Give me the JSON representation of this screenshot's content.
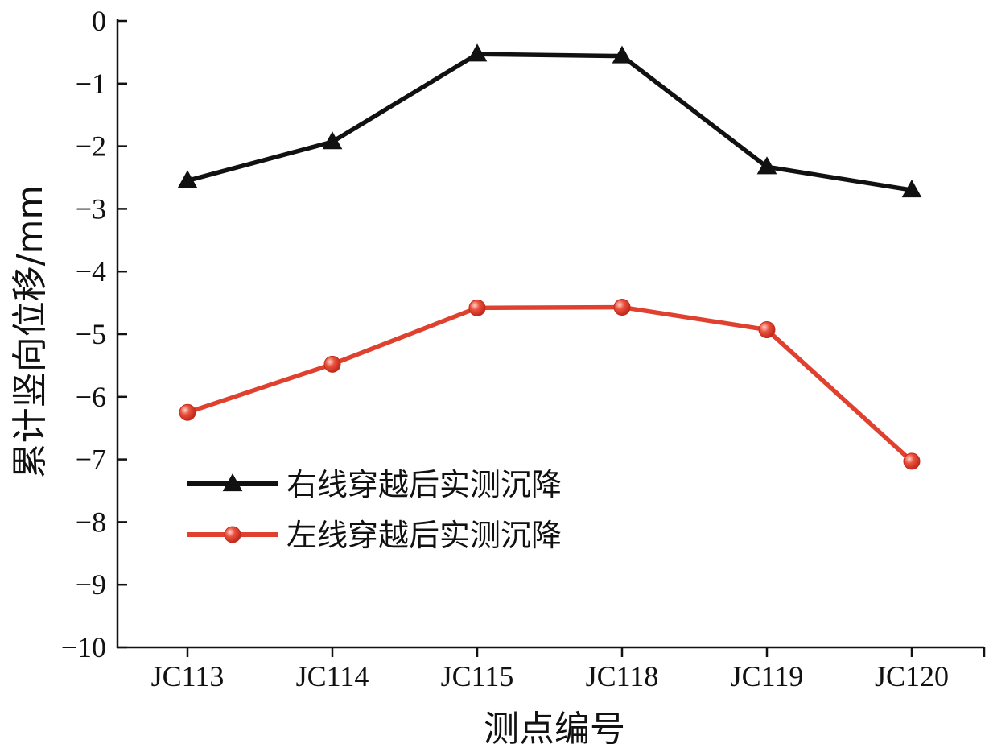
{
  "chart_data": {
    "type": "line",
    "title": "",
    "xlabel": "测点编号",
    "ylabel": "累计竖向位移/mm",
    "categories": [
      "JC113",
      "JC114",
      "JC115",
      "JC118",
      "JC119",
      "JC120"
    ],
    "ylim": [
      -10,
      0
    ],
    "yticks": [
      0,
      -1,
      -2,
      -3,
      -4,
      -5,
      -6,
      -7,
      -8,
      -9,
      -10
    ],
    "ytick_labels": [
      "0",
      "−1",
      "−2",
      "−3",
      "−4",
      "−5",
      "−6",
      "−7",
      "−8",
      "−9",
      "−10"
    ],
    "grid": false,
    "legend_position": "lower-left",
    "series": [
      {
        "name": "右线穿越后实测沉降",
        "color": "#111111",
        "marker": "triangle",
        "values": [
          -2.55,
          -1.93,
          -0.53,
          -0.56,
          -2.33,
          -2.7
        ]
      },
      {
        "name": "左线穿越后实测沉降",
        "color": "#e0402e",
        "marker": "circle",
        "values": [
          -6.25,
          -5.48,
          -4.58,
          -4.57,
          -4.93,
          -7.03
        ]
      }
    ]
  }
}
